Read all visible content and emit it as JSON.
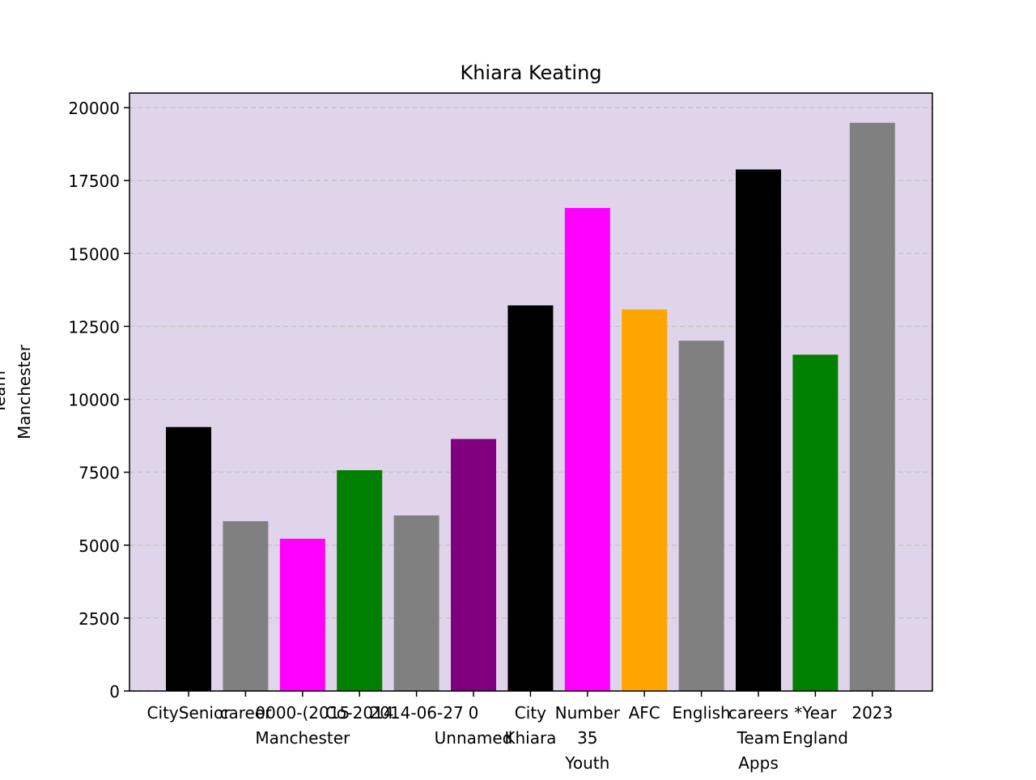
{
  "chart_data": {
    "type": "bar",
    "title": "Khiara Keating",
    "ylabel_lines": [
      "Team",
      "Manchester"
    ],
    "xlabel": "",
    "categories": [
      "CitySenior",
      "career",
      "0000-(2015 Manchester",
      "Co-2014",
      "2014-06-27",
      "0 Unnamed",
      "City Khiara",
      "Number 35 Youth",
      "AFC",
      "English",
      "careers Team Apps",
      "*Year England",
      "2023"
    ],
    "values": [
      9050,
      5820,
      5220,
      7570,
      6020,
      8640,
      13220,
      16560,
      13080,
      12010,
      17880,
      11530,
      19480
    ],
    "colors": [
      "#000000",
      "#808080",
      "#ff00ff",
      "#008000",
      "#808080",
      "#800080",
      "#000000",
      "#ff00ff",
      "#ffa500",
      "#808080",
      "#000000",
      "#008000",
      "#808080"
    ],
    "tick_label_lines": [
      [
        "CitySenior"
      ],
      [
        "career"
      ],
      [
        "0000-(2015",
        "Manchester"
      ],
      [
        "Co-2014"
      ],
      [
        "2014-06-27"
      ],
      [
        "0",
        "Unnamed"
      ],
      [
        "City",
        "Khiara"
      ],
      [
        "Number",
        "35",
        "Youth"
      ],
      [
        "AFC"
      ],
      [
        "English"
      ],
      [
        "careers",
        "Team",
        "Apps"
      ],
      [
        "*Year",
        "England"
      ],
      [
        "2023"
      ]
    ],
    "ylim": [
      0,
      20500
    ],
    "yticks": [
      0,
      2500,
      5000,
      7500,
      10000,
      12500,
      15000,
      17500,
      20000
    ],
    "grid": "y-dashed",
    "legend": "none",
    "plot_background": "#e0d4ea"
  }
}
